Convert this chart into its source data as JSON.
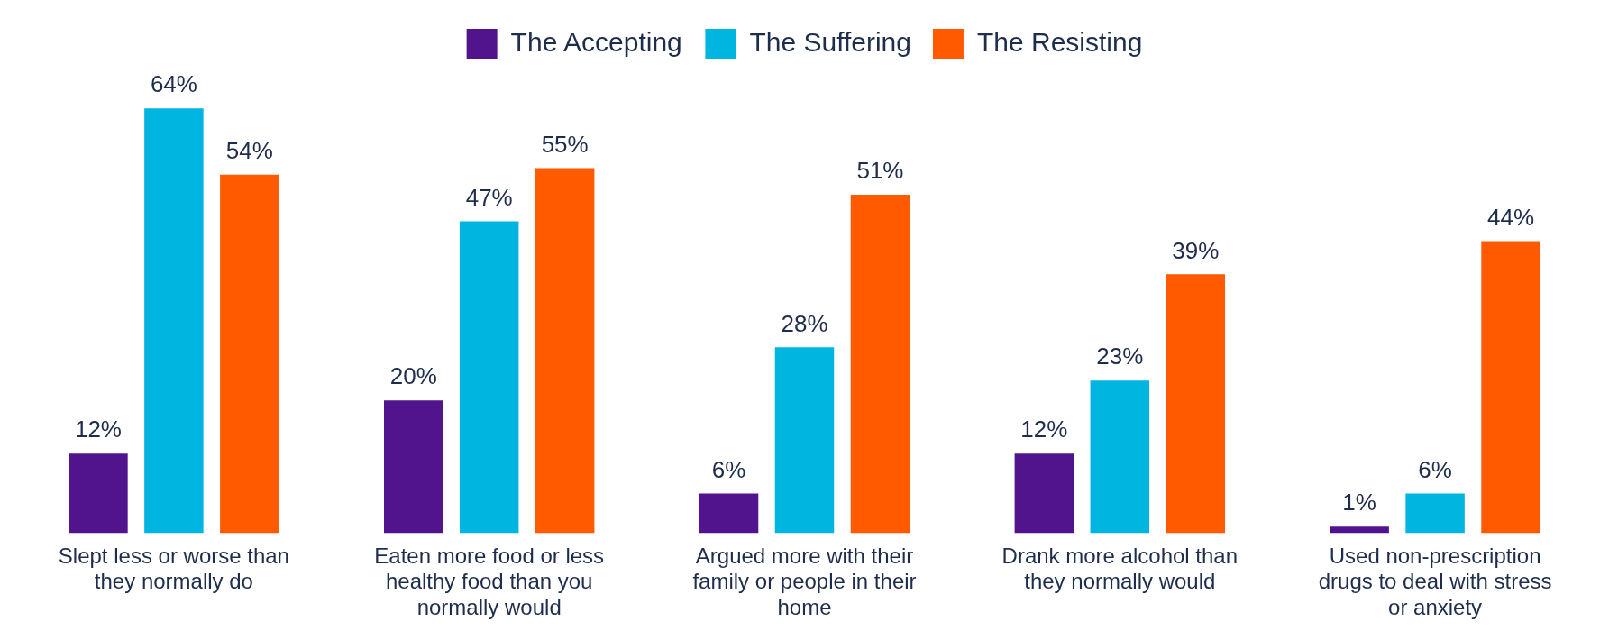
{
  "chart_data": {
    "type": "bar",
    "categories": [
      "Slept less or worse than they normally do",
      "Eaten more food or less healthy food than you normally would",
      "Argued more with their family or people in their home",
      "Drank more alcohol than they normally would",
      "Used non-prescription drugs to deal with stress or anxiety"
    ],
    "series": [
      {
        "name": "The Accepting",
        "color": "#51148c",
        "values": [
          12,
          20,
          6,
          12,
          1
        ],
        "value_labels": [
          "12%",
          "20%",
          "6%",
          "12%",
          "1%"
        ]
      },
      {
        "name": "The Suffering",
        "color": "#00b5e0",
        "values": [
          64,
          47,
          28,
          23,
          6
        ],
        "value_labels": [
          "64%",
          "47%",
          "28%",
          "23%",
          "6%"
        ]
      },
      {
        "name": "The Resisting",
        "color": "#ff5a00",
        "values": [
          54,
          55,
          51,
          39,
          44
        ],
        "value_labels": [
          "54%",
          "55%",
          "51%",
          "39%",
          "44%"
        ]
      }
    ],
    "legend": "top",
    "grid": false
  }
}
